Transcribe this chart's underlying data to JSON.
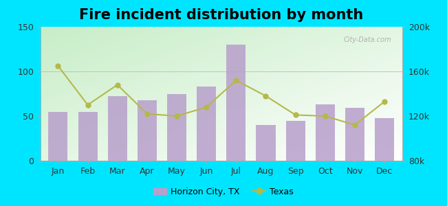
{
  "title": "Fire incident distribution by month",
  "months": [
    "Jan",
    "Feb",
    "Mar",
    "Apr",
    "May",
    "Jun",
    "Jul",
    "Aug",
    "Sep",
    "Oct",
    "Nov",
    "Dec"
  ],
  "horizon_city": [
    55,
    55,
    72,
    68,
    75,
    83,
    130,
    40,
    45,
    63,
    59,
    48
  ],
  "texas": [
    165000,
    130000,
    148000,
    122000,
    120000,
    128000,
    152000,
    138000,
    121000,
    120000,
    112000,
    133000
  ],
  "bar_color": "#b89fcc",
  "line_color": "#b5b84a",
  "outer_bg": "#00e5ff",
  "ylim_left": [
    0,
    150
  ],
  "ylim_right": [
    80000,
    200000
  ],
  "yticks_left": [
    0,
    50,
    100,
    150
  ],
  "yticks_right": [
    80000,
    120000,
    160000,
    200000
  ],
  "ytick_labels_right": [
    "80k",
    "120k",
    "160k",
    "200k"
  ],
  "title_fontsize": 15,
  "legend_label_city": "Horizon City, TX",
  "legend_label_state": "Texas"
}
